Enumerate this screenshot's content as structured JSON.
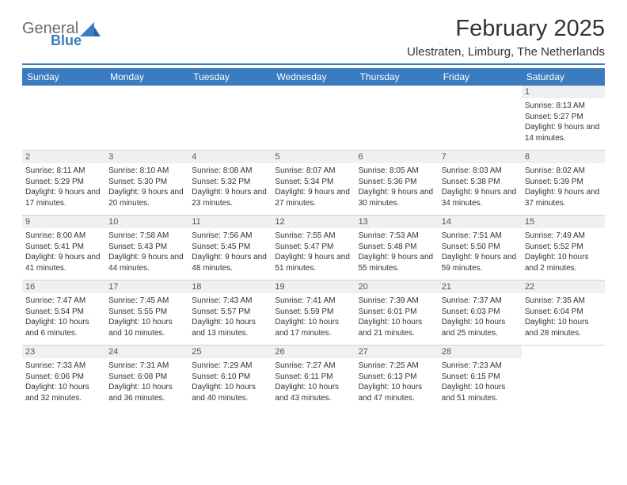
{
  "logo": {
    "word1": "General",
    "word2": "Blue"
  },
  "title": "February 2025",
  "location": "Ulestraten, Limburg, The Netherlands",
  "colors": {
    "accent": "#3b7bbf",
    "header_bg": "#3b7bbf",
    "header_text": "#ffffff",
    "daynum_bg": "#eef0f1",
    "text": "#333333",
    "rule": "#3b7bbf",
    "grid": "#c9d6e2"
  },
  "weekdays": [
    "Sunday",
    "Monday",
    "Tuesday",
    "Wednesday",
    "Thursday",
    "Friday",
    "Saturday"
  ],
  "weeks": [
    [
      null,
      null,
      null,
      null,
      null,
      null,
      {
        "n": "1",
        "sunrise": "8:13 AM",
        "sunset": "5:27 PM",
        "daylight": "9 hours and 14 minutes."
      }
    ],
    [
      {
        "n": "2",
        "sunrise": "8:11 AM",
        "sunset": "5:29 PM",
        "daylight": "9 hours and 17 minutes."
      },
      {
        "n": "3",
        "sunrise": "8:10 AM",
        "sunset": "5:30 PM",
        "daylight": "9 hours and 20 minutes."
      },
      {
        "n": "4",
        "sunrise": "8:08 AM",
        "sunset": "5:32 PM",
        "daylight": "9 hours and 23 minutes."
      },
      {
        "n": "5",
        "sunrise": "8:07 AM",
        "sunset": "5:34 PM",
        "daylight": "9 hours and 27 minutes."
      },
      {
        "n": "6",
        "sunrise": "8:05 AM",
        "sunset": "5:36 PM",
        "daylight": "9 hours and 30 minutes."
      },
      {
        "n": "7",
        "sunrise": "8:03 AM",
        "sunset": "5:38 PM",
        "daylight": "9 hours and 34 minutes."
      },
      {
        "n": "8",
        "sunrise": "8:02 AM",
        "sunset": "5:39 PM",
        "daylight": "9 hours and 37 minutes."
      }
    ],
    [
      {
        "n": "9",
        "sunrise": "8:00 AM",
        "sunset": "5:41 PM",
        "daylight": "9 hours and 41 minutes."
      },
      {
        "n": "10",
        "sunrise": "7:58 AM",
        "sunset": "5:43 PM",
        "daylight": "9 hours and 44 minutes."
      },
      {
        "n": "11",
        "sunrise": "7:56 AM",
        "sunset": "5:45 PM",
        "daylight": "9 hours and 48 minutes."
      },
      {
        "n": "12",
        "sunrise": "7:55 AM",
        "sunset": "5:47 PM",
        "daylight": "9 hours and 51 minutes."
      },
      {
        "n": "13",
        "sunrise": "7:53 AM",
        "sunset": "5:48 PM",
        "daylight": "9 hours and 55 minutes."
      },
      {
        "n": "14",
        "sunrise": "7:51 AM",
        "sunset": "5:50 PM",
        "daylight": "9 hours and 59 minutes."
      },
      {
        "n": "15",
        "sunrise": "7:49 AM",
        "sunset": "5:52 PM",
        "daylight": "10 hours and 2 minutes."
      }
    ],
    [
      {
        "n": "16",
        "sunrise": "7:47 AM",
        "sunset": "5:54 PM",
        "daylight": "10 hours and 6 minutes."
      },
      {
        "n": "17",
        "sunrise": "7:45 AM",
        "sunset": "5:55 PM",
        "daylight": "10 hours and 10 minutes."
      },
      {
        "n": "18",
        "sunrise": "7:43 AM",
        "sunset": "5:57 PM",
        "daylight": "10 hours and 13 minutes."
      },
      {
        "n": "19",
        "sunrise": "7:41 AM",
        "sunset": "5:59 PM",
        "daylight": "10 hours and 17 minutes."
      },
      {
        "n": "20",
        "sunrise": "7:39 AM",
        "sunset": "6:01 PM",
        "daylight": "10 hours and 21 minutes."
      },
      {
        "n": "21",
        "sunrise": "7:37 AM",
        "sunset": "6:03 PM",
        "daylight": "10 hours and 25 minutes."
      },
      {
        "n": "22",
        "sunrise": "7:35 AM",
        "sunset": "6:04 PM",
        "daylight": "10 hours and 28 minutes."
      }
    ],
    [
      {
        "n": "23",
        "sunrise": "7:33 AM",
        "sunset": "6:06 PM",
        "daylight": "10 hours and 32 minutes."
      },
      {
        "n": "24",
        "sunrise": "7:31 AM",
        "sunset": "6:08 PM",
        "daylight": "10 hours and 36 minutes."
      },
      {
        "n": "25",
        "sunrise": "7:29 AM",
        "sunset": "6:10 PM",
        "daylight": "10 hours and 40 minutes."
      },
      {
        "n": "26",
        "sunrise": "7:27 AM",
        "sunset": "6:11 PM",
        "daylight": "10 hours and 43 minutes."
      },
      {
        "n": "27",
        "sunrise": "7:25 AM",
        "sunset": "6:13 PM",
        "daylight": "10 hours and 47 minutes."
      },
      {
        "n": "28",
        "sunrise": "7:23 AM",
        "sunset": "6:15 PM",
        "daylight": "10 hours and 51 minutes."
      },
      null
    ]
  ],
  "labels": {
    "sunrise": "Sunrise:",
    "sunset": "Sunset:",
    "daylight": "Daylight:"
  }
}
